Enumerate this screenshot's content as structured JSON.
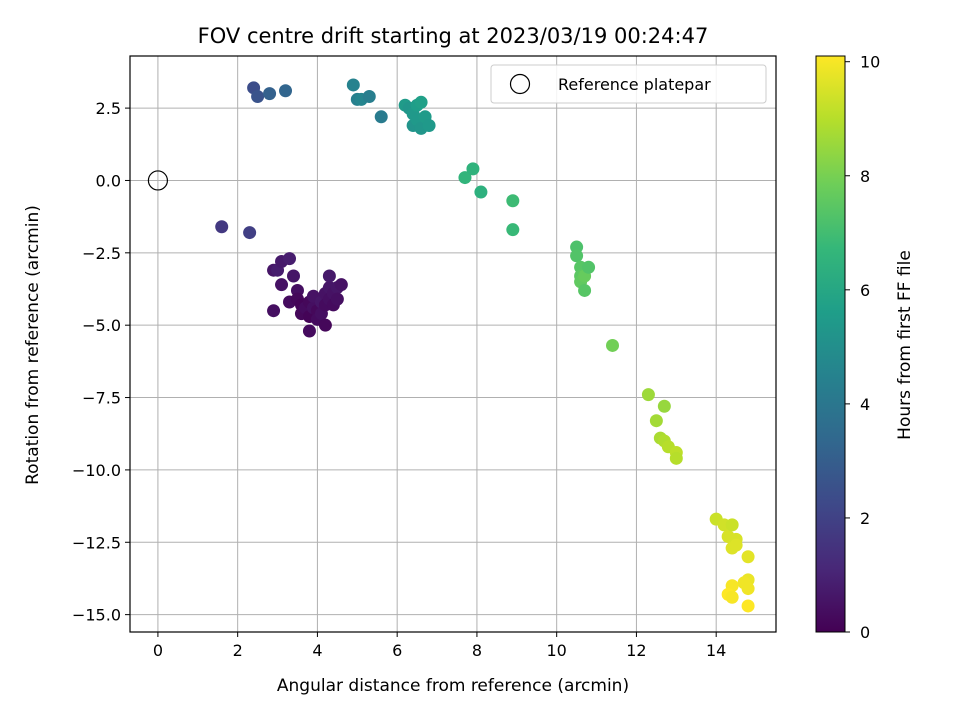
{
  "chart_data": {
    "type": "scatter",
    "title": "FOV centre drift starting at 2023/03/19 00:24:47",
    "xlabel": "Angular distance from reference (arcmin)",
    "ylabel": "Rotation from reference (arcmin)",
    "xlim": [
      -0.7,
      15.5
    ],
    "ylim": [
      -15.6,
      4.3
    ],
    "xticks": [
      0,
      2,
      4,
      6,
      8,
      10,
      12,
      14
    ],
    "yticks": [
      2.5,
      0.0,
      -2.5,
      -5.0,
      -7.5,
      -10.0,
      -12.5,
      -15.0
    ],
    "xtick_labels": [
      "0",
      "2",
      "4",
      "6",
      "8",
      "10",
      "12",
      "14"
    ],
    "ytick_labels": [
      "2.5",
      "0.0",
      "−2.5",
      "−5.0",
      "−7.5",
      "−10.0",
      "−12.5",
      "−15.0"
    ],
    "grid": true,
    "legend": {
      "position": "top-right",
      "entries": [
        "Reference platepar"
      ]
    },
    "reference": {
      "x": 0.0,
      "y": 0.0,
      "label": "Reference platepar"
    },
    "colorbar": {
      "label": "Hours from first FF file",
      "range": [
        0,
        10.1
      ],
      "ticks": [
        0,
        2,
        4,
        6,
        8,
        10
      ],
      "colormap": "viridis",
      "stops": [
        "#440154",
        "#482878",
        "#3e4989",
        "#31688e",
        "#26828e",
        "#1f9e89",
        "#35b779",
        "#6ece58",
        "#b5de2b",
        "#fde725"
      ]
    },
    "series": [
      {
        "points": [
          {
            "x": 1.6,
            "y": -1.6,
            "c": 1.7
          },
          {
            "x": 2.3,
            "y": -1.8,
            "c": 1.9
          },
          {
            "x": 2.9,
            "y": -3.1,
            "c": 0.6
          },
          {
            "x": 3.0,
            "y": -3.1,
            "c": 0.8
          },
          {
            "x": 3.1,
            "y": -2.8,
            "c": 0.7
          },
          {
            "x": 3.3,
            "y": -2.7,
            "c": 0.8
          },
          {
            "x": 3.1,
            "y": -3.6,
            "c": 0.5
          },
          {
            "x": 3.4,
            "y": -3.3,
            "c": 0.6
          },
          {
            "x": 2.9,
            "y": -4.5,
            "c": 0.4
          },
          {
            "x": 3.3,
            "y": -4.2,
            "c": 0.3
          },
          {
            "x": 3.5,
            "y": -3.8,
            "c": 0.4
          },
          {
            "x": 3.5,
            "y": -4.1,
            "c": 0.2
          },
          {
            "x": 3.6,
            "y": -4.3,
            "c": 0.1
          },
          {
            "x": 3.6,
            "y": -4.6,
            "c": 0.2
          },
          {
            "x": 3.7,
            "y": -4.4,
            "c": 0.3
          },
          {
            "x": 3.8,
            "y": -4.2,
            "c": 0.2
          },
          {
            "x": 3.8,
            "y": -4.7,
            "c": 0.1
          },
          {
            "x": 3.8,
            "y": -5.2,
            "c": 0.3
          },
          {
            "x": 3.9,
            "y": -4.4,
            "c": 0.4
          },
          {
            "x": 3.9,
            "y": -4.0,
            "c": 0.5
          },
          {
            "x": 4.0,
            "y": -4.5,
            "c": 0.2
          },
          {
            "x": 4.0,
            "y": -4.8,
            "c": 0.3
          },
          {
            "x": 4.1,
            "y": -4.2,
            "c": 0.6
          },
          {
            "x": 4.1,
            "y": -4.6,
            "c": 0.4
          },
          {
            "x": 4.2,
            "y": -3.9,
            "c": 0.5
          },
          {
            "x": 4.2,
            "y": -4.3,
            "c": 0.3
          },
          {
            "x": 4.2,
            "y": -5.0,
            "c": 0.2
          },
          {
            "x": 4.3,
            "y": -3.7,
            "c": 0.6
          },
          {
            "x": 4.3,
            "y": -4.1,
            "c": 0.4
          },
          {
            "x": 4.3,
            "y": -3.3,
            "c": 0.7
          },
          {
            "x": 4.4,
            "y": -3.9,
            "c": 0.5
          },
          {
            "x": 4.4,
            "y": -4.3,
            "c": 0.3
          },
          {
            "x": 4.5,
            "y": -3.7,
            "c": 0.6
          },
          {
            "x": 4.5,
            "y": -4.1,
            "c": 0.4
          },
          {
            "x": 4.6,
            "y": -3.6,
            "c": 0.5
          },
          {
            "x": 2.4,
            "y": 3.2,
            "c": 2.4
          },
          {
            "x": 2.5,
            "y": 2.9,
            "c": 2.6
          },
          {
            "x": 2.8,
            "y": 3.0,
            "c": 3.1
          },
          {
            "x": 3.2,
            "y": 3.1,
            "c": 3.3
          },
          {
            "x": 4.9,
            "y": 3.3,
            "c": 4.5
          },
          {
            "x": 5.0,
            "y": 2.8,
            "c": 4.4
          },
          {
            "x": 5.1,
            "y": 2.8,
            "c": 4.6
          },
          {
            "x": 5.3,
            "y": 2.9,
            "c": 4.3
          },
          {
            "x": 5.6,
            "y": 2.2,
            "c": 4.2
          },
          {
            "x": 6.2,
            "y": 2.6,
            "c": 5.5
          },
          {
            "x": 6.3,
            "y": 2.5,
            "c": 5.3
          },
          {
            "x": 6.4,
            "y": 2.3,
            "c": 5.4
          },
          {
            "x": 6.4,
            "y": 1.9,
            "c": 5.2
          },
          {
            "x": 6.5,
            "y": 2.6,
            "c": 5.6
          },
          {
            "x": 6.5,
            "y": 2.1,
            "c": 5.4
          },
          {
            "x": 6.6,
            "y": 2.7,
            "c": 5.7
          },
          {
            "x": 6.6,
            "y": 1.8,
            "c": 5.3
          },
          {
            "x": 6.7,
            "y": 2.2,
            "c": 5.5
          },
          {
            "x": 6.8,
            "y": 1.9,
            "c": 5.4
          },
          {
            "x": 7.7,
            "y": 0.1,
            "c": 6.6
          },
          {
            "x": 7.9,
            "y": 0.4,
            "c": 6.5
          },
          {
            "x": 8.1,
            "y": -0.4,
            "c": 6.4
          },
          {
            "x": 8.9,
            "y": -0.7,
            "c": 6.9
          },
          {
            "x": 8.9,
            "y": -1.7,
            "c": 6.8
          },
          {
            "x": 10.5,
            "y": -2.3,
            "c": 7.2
          },
          {
            "x": 10.5,
            "y": -2.6,
            "c": 7.3
          },
          {
            "x": 10.6,
            "y": -3.0,
            "c": 7.4
          },
          {
            "x": 10.6,
            "y": -3.3,
            "c": 7.5
          },
          {
            "x": 10.6,
            "y": -3.5,
            "c": 7.6
          },
          {
            "x": 10.7,
            "y": -3.3,
            "c": 7.7
          },
          {
            "x": 10.7,
            "y": -3.8,
            "c": 7.4
          },
          {
            "x": 10.8,
            "y": -3.0,
            "c": 7.3
          },
          {
            "x": 11.4,
            "y": -5.7,
            "c": 7.9
          },
          {
            "x": 12.3,
            "y": -7.4,
            "c": 8.6
          },
          {
            "x": 12.5,
            "y": -8.3,
            "c": 8.7
          },
          {
            "x": 12.6,
            "y": -8.9,
            "c": 8.8
          },
          {
            "x": 12.7,
            "y": -7.8,
            "c": 8.5
          },
          {
            "x": 12.7,
            "y": -9.0,
            "c": 8.9
          },
          {
            "x": 12.8,
            "y": -9.2,
            "c": 9.0
          },
          {
            "x": 13.0,
            "y": -9.4,
            "c": 9.1
          },
          {
            "x": 13.0,
            "y": -9.6,
            "c": 9.0
          },
          {
            "x": 14.0,
            "y": -11.7,
            "c": 9.3
          },
          {
            "x": 14.2,
            "y": -11.9,
            "c": 9.4
          },
          {
            "x": 14.3,
            "y": -12.3,
            "c": 9.5
          },
          {
            "x": 14.4,
            "y": -11.9,
            "c": 9.3
          },
          {
            "x": 14.4,
            "y": -12.7,
            "c": 9.6
          },
          {
            "x": 14.5,
            "y": -12.4,
            "c": 9.5
          },
          {
            "x": 14.5,
            "y": -12.6,
            "c": 9.6
          },
          {
            "x": 14.8,
            "y": -13.0,
            "c": 9.7
          },
          {
            "x": 14.8,
            "y": -13.8,
            "c": 9.8
          },
          {
            "x": 14.7,
            "y": -13.9,
            "c": 9.9
          },
          {
            "x": 14.4,
            "y": -14.0,
            "c": 10.0
          },
          {
            "x": 14.3,
            "y": -14.3,
            "c": 10.1
          },
          {
            "x": 14.4,
            "y": -14.4,
            "c": 10.0
          },
          {
            "x": 14.8,
            "y": -14.1,
            "c": 9.9
          },
          {
            "x": 14.8,
            "y": -14.7,
            "c": 10.1
          }
        ]
      }
    ]
  }
}
